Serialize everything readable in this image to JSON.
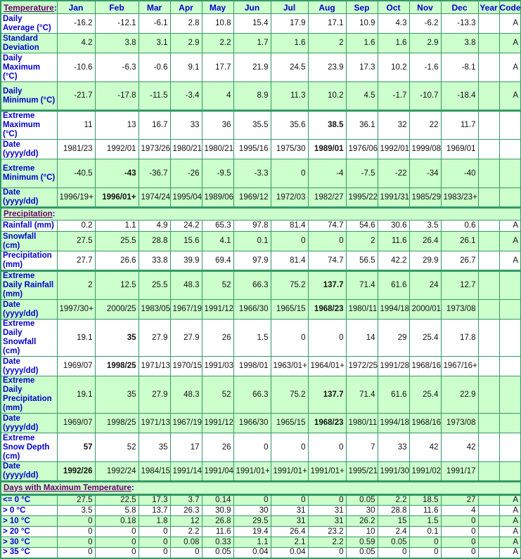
{
  "columns": [
    "Jan",
    "Feb",
    "Mar",
    "Apr",
    "May",
    "Jun",
    "Jul",
    "Aug",
    "Sep",
    "Oct",
    "Nov",
    "Dec",
    "Year",
    "Code"
  ],
  "colors": {
    "green": "#ccffcc",
    "border": "#339966",
    "label": "#0000cc",
    "section_link": "#660066"
  },
  "sections": [
    {
      "title": "Temperature",
      "rows": [
        {
          "label": "Daily Average (°C)",
          "values": [
            "-16.2",
            "-12.1",
            "-6.1",
            "2.8",
            "10.8",
            "15.4",
            "17.9",
            "17.1",
            "10.9",
            "4.3",
            "-6.2",
            "-13.3",
            ""
          ],
          "code": "A",
          "bold": [],
          "bg": "w",
          "h": 28
        },
        {
          "label": "Standard Deviation",
          "values": [
            "4.2",
            "3.8",
            "3.1",
            "2.9",
            "2.2",
            "1.7",
            "1.6",
            "2",
            "1.6",
            "1.6",
            "2.9",
            "3.8",
            ""
          ],
          "code": "A",
          "bold": [],
          "bg": "g",
          "h": 28
        },
        {
          "label": "Daily Maximum (°C)",
          "values": [
            "-10.6",
            "-6.3",
            "-0.6",
            "9.1",
            "17.7",
            "21.9",
            "24.5",
            "23.9",
            "17.3",
            "10.2",
            "-1.6",
            "-8.1",
            ""
          ],
          "code": "A",
          "bold": [],
          "bg": "w",
          "h": 41
        },
        {
          "label": "Daily Minimum (°C)",
          "values": [
            "-21.7",
            "-17.8",
            "-11.5",
            "-3.4",
            "4",
            "8.9",
            "11.3",
            "10.2",
            "4.5",
            "-1.7",
            "-10.7",
            "-18.4",
            ""
          ],
          "code": "A",
          "bold": [],
          "bg": "g",
          "h": 41
        },
        {
          "label": "Extreme Maximum (°C)",
          "values": [
            "11",
            "13",
            "16.7",
            "33",
            "36",
            "35.5",
            "35.6",
            "38.5",
            "36.1",
            "32",
            "22",
            "11.7",
            ""
          ],
          "code": "",
          "bold": [
            7
          ],
          "bg": "w",
          "h": 41,
          "sep": true
        },
        {
          "label": "Date (yyyy/dd)",
          "values": [
            "1981/23",
            "1992/01",
            "1973/26",
            "1980/21",
            "1980/21",
            "1995/16",
            "1975/30",
            "1989/01",
            "1976/06",
            "1992/01",
            "1999/08",
            "1969/01",
            ""
          ],
          "code": "",
          "bold": [
            7
          ],
          "bg": "w",
          "h": 28
        },
        {
          "label": "Extreme Minimum (°C)",
          "values": [
            "-40.5",
            "-43",
            "-36.7",
            "-26",
            "-9.5",
            "-3.3",
            "0",
            "-4",
            "-7.5",
            "-22",
            "-34",
            "-40",
            ""
          ],
          "code": "",
          "bold": [
            1
          ],
          "bg": "g",
          "h": 41
        },
        {
          "label": "Date (yyyy/dd)",
          "values": [
            "1996/19+",
            "1996/01+",
            "1974/24",
            "1995/04",
            "1989/06",
            "1969/12",
            "1972/03",
            "1982/27",
            "1995/22",
            "1991/31",
            "1985/29",
            "1983/23+",
            ""
          ],
          "code": "",
          "bold": [
            1
          ],
          "bg": "g",
          "h": 28
        }
      ]
    },
    {
      "title": "Precipitation",
      "rows": [
        {
          "label": "Rainfall (mm)",
          "values": [
            "0.2",
            "1.1",
            "4.9",
            "24.2",
            "65.3",
            "97.8",
            "81.4",
            "74.7",
            "54.6",
            "30.6",
            "3.5",
            "0.6",
            ""
          ],
          "code": "A",
          "bold": [],
          "bg": "w",
          "h": 16
        },
        {
          "label": "Snowfall (cm)",
          "values": [
            "27.5",
            "25.5",
            "28.8",
            "15.6",
            "4.1",
            "0.1",
            "0",
            "0",
            "2",
            "11.6",
            "26.4",
            "26.1",
            ""
          ],
          "code": "A",
          "bold": [],
          "bg": "g",
          "h": 28
        },
        {
          "label": "Precipitation (mm)",
          "values": [
            "27.7",
            "26.6",
            "33.8",
            "39.9",
            "69.4",
            "97.9",
            "81.4",
            "74.7",
            "56.5",
            "42.2",
            "29.9",
            "26.7",
            ""
          ],
          "code": "A",
          "bold": [],
          "bg": "w",
          "h": 28
        },
        {
          "label": "Extreme Daily Rainfall (mm)",
          "values": [
            "2",
            "12.5",
            "25.5",
            "48.3",
            "52",
            "66.3",
            "75.2",
            "137.7",
            "71.4",
            "61.6",
            "24",
            "12.7",
            ""
          ],
          "code": "",
          "bold": [
            7
          ],
          "bg": "g",
          "h": 28,
          "sep": true
        },
        {
          "label": "Date (yyyy/dd)",
          "values": [
            "1997/30+",
            "2000/25",
            "1983/05",
            "1967/19",
            "1991/12",
            "1966/30",
            "1965/15",
            "1968/23",
            "1980/11",
            "1994/18",
            "2000/01",
            "1973/08",
            ""
          ],
          "code": "",
          "bold": [
            7
          ],
          "bg": "g",
          "h": 28
        },
        {
          "label": "Extreme Daily Snowfall (cm)",
          "values": [
            "19.1",
            "35",
            "27.9",
            "27.9",
            "26",
            "1.5",
            "0",
            "0",
            "14",
            "29",
            "25.4",
            "17.8",
            ""
          ],
          "code": "",
          "bold": [
            1
          ],
          "bg": "w",
          "h": 41
        },
        {
          "label": "Date (yyyy/dd)",
          "values": [
            "1969/07",
            "1998/25",
            "1971/13",
            "1970/15",
            "1991/03",
            "1998/01",
            "1963/01+",
            "1964/01+",
            "1972/25",
            "1991/28",
            "1968/16",
            "1967/16+",
            ""
          ],
          "code": "",
          "bold": [
            1
          ],
          "bg": "w",
          "h": 28
        },
        {
          "label": "Extreme Daily Precipitation (mm)",
          "values": [
            "19.1",
            "35",
            "27.9",
            "48.3",
            "52",
            "66.3",
            "75.2",
            "137.7",
            "71.4",
            "61.6",
            "25.4",
            "22.9",
            ""
          ],
          "code": "",
          "bold": [
            7
          ],
          "bg": "g",
          "h": 41
        },
        {
          "label": "Date (yyyy/dd)",
          "values": [
            "1969/07",
            "1998/25",
            "1971/13",
            "1967/19",
            "1991/12",
            "1966/30",
            "1965/15",
            "1968/23",
            "1980/11",
            "1994/18",
            "1968/16",
            "1973/08",
            ""
          ],
          "code": "",
          "bold": [
            7
          ],
          "bg": "g",
          "h": 28
        },
        {
          "label": "Extreme Snow Depth (cm)",
          "values": [
            "57",
            "52",
            "35",
            "17",
            "26",
            "0",
            "0",
            "0",
            "7",
            "33",
            "42",
            "42",
            ""
          ],
          "code": "",
          "bold": [
            0
          ],
          "bg": "w",
          "h": 41
        },
        {
          "label": "Date (yyyy/dd)",
          "values": [
            "1992/26",
            "1992/24",
            "1984/15",
            "1991/14",
            "1991/04",
            "1991/01+",
            "1991/01+",
            "1991/01+",
            "1995/21",
            "1991/30",
            "1991/02",
            "1991/17",
            ""
          ],
          "code": "",
          "bold": [
            0
          ],
          "bg": "g",
          "h": 28
        }
      ]
    },
    {
      "title": "Days with Maximum Temperature",
      "rows": [
        {
          "label": "<= 0 °C",
          "values": [
            "27.5",
            "22.5",
            "17.3",
            "3.7",
            "0.14",
            "0",
            "0",
            "0",
            "0.05",
            "2.2",
            "18.5",
            "27",
            ""
          ],
          "code": "A",
          "bold": [],
          "bg": "g",
          "h": 15,
          "sep": true
        },
        {
          "label": "> 0 °C",
          "values": [
            "3.5",
            "5.8",
            "13.7",
            "26.3",
            "30.9",
            "30",
            "31",
            "31",
            "30",
            "28.8",
            "11.6",
            "4",
            ""
          ],
          "code": "A",
          "bold": [],
          "bg": "w",
          "h": 15
        },
        {
          "label": "> 10 °C",
          "values": [
            "0",
            "0.18",
            "1.8",
            "12",
            "26.8",
            "29.5",
            "31",
            "31",
            "26.2",
            "15",
            "1.5",
            "0",
            ""
          ],
          "code": "A",
          "bold": [],
          "bg": "g",
          "h": 15
        },
        {
          "label": "> 20 °C",
          "values": [
            "0",
            "0",
            "0",
            "2.2",
            "11.6",
            "19.4",
            "26.4",
            "23.2",
            "10",
            "2.4",
            "0.1",
            "0",
            ""
          ],
          "code": "A",
          "bold": [],
          "bg": "w",
          "h": 15
        },
        {
          "label": "> 30 °C",
          "values": [
            "0",
            "0",
            "0",
            "0.08",
            "0.33",
            "1.1",
            "2.1",
            "2.2",
            "0.59",
            "0.05",
            "0",
            "0",
            ""
          ],
          "code": "A",
          "bold": [],
          "bg": "g",
          "h": 15
        },
        {
          "label": "> 35 °C",
          "values": [
            "0",
            "0",
            "0",
            "0",
            "0.05",
            "0.04",
            "0.04",
            "0",
            "0.05",
            "0",
            "0",
            "0",
            ""
          ],
          "code": "A",
          "bold": [],
          "bg": "w",
          "h": 15
        }
      ]
    }
  ]
}
